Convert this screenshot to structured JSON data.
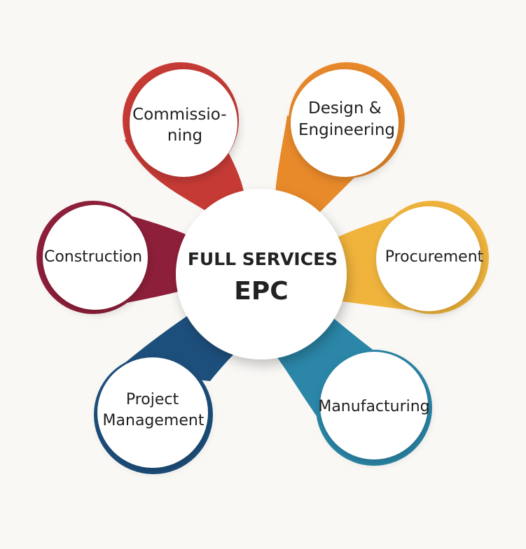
{
  "center": {
    "line1": "FULL SERVICES",
    "line2": "EPC"
  },
  "petals": [
    {
      "id": "commissioning",
      "lines": [
        "Commissio-",
        "ning"
      ],
      "color": "#c63a35"
    },
    {
      "id": "design-engineering",
      "lines": [
        "Design &",
        "Engineering"
      ],
      "color": "#e8892a"
    },
    {
      "id": "procurement",
      "lines": [
        "Procurement"
      ],
      "color": "#f0b43c"
    },
    {
      "id": "manufacturing",
      "lines": [
        "Manufacturing"
      ],
      "color": "#2b86a8"
    },
    {
      "id": "project-management",
      "lines": [
        "Project",
        "Management"
      ],
      "color": "#1d4f7c"
    },
    {
      "id": "construction",
      "lines": [
        "Construction"
      ],
      "color": "#8e1f3a"
    }
  ]
}
